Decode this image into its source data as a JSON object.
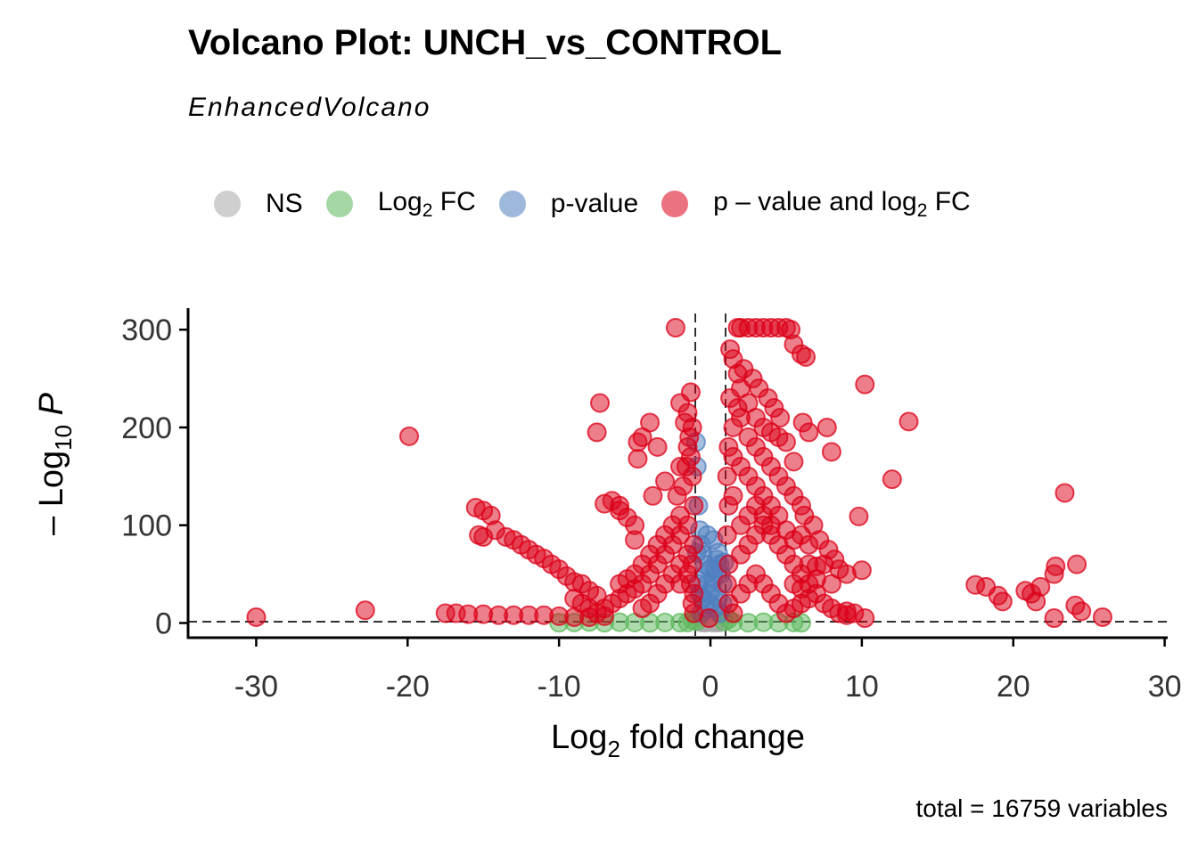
{
  "chart_data": {
    "type": "scatter",
    "title": "Volcano Plot: UNCH_vs_CONTROL",
    "subtitle": "EnhancedVolcano",
    "caption": "total = 16759 variables",
    "xlabel": "Log2 fold change",
    "ylabel": "-Log10 P",
    "xlim": [
      -34.5,
      30.2
    ],
    "ylim": [
      -15,
      322
    ],
    "xticks": [
      -30,
      -20,
      -10,
      0,
      10,
      20,
      30
    ],
    "yticks": [
      0,
      100,
      200,
      300
    ],
    "fc_cutoff": [
      -1,
      1
    ],
    "p_cutoff_line": 1.3,
    "grid": false,
    "legend_position": "top",
    "colors": {
      "NS": "#a8a8a8",
      "Log2 FC": "#5cb85c",
      "p-value": "#4f7fbf",
      "p - value and log2 FC": "#dc0018"
    },
    "legend": [
      {
        "key": "NS",
        "label": "NS",
        "color": "#a8a8a8"
      },
      {
        "key": "Log2 FC",
        "label": "Log",
        "sub": "2",
        "rest": " FC",
        "color": "#5cb85c"
      },
      {
        "key": "p-value",
        "label": "p-value",
        "color": "#4f7fbf"
      },
      {
        "key": "p - value and log2 FC",
        "label": "p – value and log",
        "sub": "2",
        "rest": " FC",
        "color": "#dc0018"
      }
    ],
    "series": [
      {
        "name": "NS",
        "points": [
          [
            -0.4,
            1
          ],
          [
            -0.2,
            2
          ],
          [
            0,
            3
          ],
          [
            0.2,
            1
          ],
          [
            0.4,
            2
          ],
          [
            -0.6,
            0.5
          ],
          [
            0.6,
            0.5
          ],
          [
            0.1,
            4
          ],
          [
            -0.1,
            5
          ],
          [
            0.3,
            0.3
          ],
          [
            -0.3,
            0.3
          ],
          [
            0,
            0.8
          ]
        ]
      },
      {
        "name": "Log2 FC",
        "points": [
          [
            -9,
            0.5
          ],
          [
            -8,
            1
          ],
          [
            -7,
            0.3
          ],
          [
            -6,
            0.8
          ],
          [
            -5,
            0.5
          ],
          [
            -4,
            0.2
          ],
          [
            -3,
            0.6
          ],
          [
            -2,
            0.4
          ],
          [
            -1.5,
            0.5
          ],
          [
            1.5,
            0.5
          ],
          [
            2.5,
            0.3
          ],
          [
            3.5,
            0.8
          ],
          [
            4.5,
            0.4
          ],
          [
            5.5,
            0.6
          ],
          [
            6,
            0.2
          ],
          [
            -10,
            0.3
          ],
          [
            -0.9,
            2
          ],
          [
            0.9,
            1.5
          ],
          [
            -1.2,
            3
          ],
          [
            1.2,
            4
          ]
        ]
      },
      {
        "name": "p-value",
        "points": [
          [
            -0.9,
            160
          ],
          [
            -0.95,
            185
          ],
          [
            -0.8,
            120
          ],
          [
            -0.7,
            95
          ],
          [
            -0.6,
            80
          ],
          [
            -0.5,
            70
          ],
          [
            -0.4,
            60
          ],
          [
            -0.3,
            50
          ],
          [
            -0.2,
            40
          ],
          [
            -0.1,
            30
          ],
          [
            0.1,
            35
          ],
          [
            0.2,
            45
          ],
          [
            0.3,
            55
          ],
          [
            0.4,
            65
          ],
          [
            0.5,
            72
          ],
          [
            0.6,
            60
          ],
          [
            0.7,
            50
          ],
          [
            0.8,
            40
          ],
          [
            0.9,
            62
          ],
          [
            -0.9,
            72
          ],
          [
            -0.8,
            40
          ],
          [
            -0.5,
            25
          ],
          [
            0.5,
            25
          ],
          [
            0,
            20
          ],
          [
            -0.3,
            15
          ],
          [
            0.3,
            15
          ],
          [
            0.6,
            10
          ],
          [
            -0.6,
            10
          ],
          [
            0,
            55
          ],
          [
            -0.2,
            90
          ],
          [
            0.2,
            85
          ],
          [
            -0.7,
            30
          ],
          [
            0.8,
            20
          ]
        ]
      },
      {
        "name": "p - value and log2 FC",
        "points": [
          [
            -30,
            6
          ],
          [
            -22.8,
            13
          ],
          [
            -19.9,
            191
          ],
          [
            -15.5,
            118
          ],
          [
            -15,
            115
          ],
          [
            -14.5,
            110
          ],
          [
            -14.2,
            95
          ],
          [
            -13.5,
            88
          ],
          [
            -13,
            85
          ],
          [
            -12.5,
            80
          ],
          [
            -12,
            75
          ],
          [
            -11.5,
            70
          ],
          [
            -11,
            66
          ],
          [
            -10.5,
            60
          ],
          [
            -10,
            55
          ],
          [
            -9.5,
            48
          ],
          [
            -9,
            42
          ],
          [
            -8.5,
            40
          ],
          [
            -8,
            33
          ],
          [
            -7.5,
            28
          ],
          [
            -15.3,
            90
          ],
          [
            -15,
            88
          ],
          [
            -17.5,
            10
          ],
          [
            -16.8,
            10
          ],
          [
            -16,
            9
          ],
          [
            -15,
            9
          ],
          [
            -14,
            8
          ],
          [
            -13,
            8
          ],
          [
            -12,
            8
          ],
          [
            -11,
            8
          ],
          [
            -10,
            7
          ],
          [
            -9,
            6
          ],
          [
            -8,
            6
          ],
          [
            -7,
            7
          ],
          [
            -7.3,
            225
          ],
          [
            -7.5,
            195
          ],
          [
            -6.5,
            125
          ],
          [
            -7,
            122
          ],
          [
            -6,
            120
          ],
          [
            -6,
            115
          ],
          [
            -5.5,
            108
          ],
          [
            -5,
            100
          ],
          [
            -5,
            85
          ],
          [
            -4.8,
            185
          ],
          [
            -4.5,
            190
          ],
          [
            -4.8,
            168
          ],
          [
            -4,
            205
          ],
          [
            -3.8,
            130
          ],
          [
            -3.5,
            180
          ],
          [
            -3,
            145
          ],
          [
            -2.3,
            302
          ],
          [
            -1.3,
            236
          ],
          [
            -2,
            225
          ],
          [
            -1.5,
            215
          ],
          [
            -1.2,
            200
          ],
          [
            -1.5,
            180
          ],
          [
            -1.2,
            150
          ],
          [
            -1.1,
            120
          ],
          [
            -1.5,
            100
          ],
          [
            -2,
            90
          ],
          [
            -2.5,
            80
          ],
          [
            -3,
            70
          ],
          [
            -3.5,
            60
          ],
          [
            -4,
            50
          ],
          [
            -4.5,
            40
          ],
          [
            -5,
            35
          ],
          [
            -5.5,
            30
          ],
          [
            -6,
            25
          ],
          [
            -6.5,
            20
          ],
          [
            -7,
            15
          ],
          [
            -7.5,
            10
          ],
          [
            -8,
            15
          ],
          [
            -8.5,
            20
          ],
          [
            -9,
            25
          ],
          [
            -1.1,
            80
          ],
          [
            -1.2,
            60
          ],
          [
            -1.3,
            40
          ],
          [
            -1.1,
            30
          ],
          [
            -1.2,
            20
          ],
          [
            -2,
            60
          ],
          [
            -2.5,
            50
          ],
          [
            -3,
            40
          ],
          [
            -3.5,
            30
          ],
          [
            -4,
            20
          ],
          [
            -4.5,
            15
          ],
          [
            -2,
            40
          ],
          [
            -1.5,
            50
          ],
          [
            -1.5,
            70
          ],
          [
            -2,
            110
          ],
          [
            -2.5,
            100
          ],
          [
            -3,
            90
          ],
          [
            -3.5,
            80
          ],
          [
            -4,
            70
          ],
          [
            -4.5,
            60
          ],
          [
            -5,
            50
          ],
          [
            -5.5,
            45
          ],
          [
            -6,
            40
          ],
          [
            -1.3,
            170
          ],
          [
            -1.6,
            160
          ],
          [
            -1.8,
            140
          ],
          [
            -2.2,
            130
          ],
          [
            -1.4,
            190
          ],
          [
            -1.7,
            205
          ],
          [
            -2,
            160
          ],
          [
            1.8,
            302
          ],
          [
            2,
            302
          ],
          [
            2.5,
            302
          ],
          [
            3,
            302
          ],
          [
            3.5,
            302
          ],
          [
            4,
            302
          ],
          [
            4.5,
            302
          ],
          [
            5,
            302
          ],
          [
            5.3,
            300
          ],
          [
            5.5,
            285
          ],
          [
            6,
            275
          ],
          [
            6.3,
            272
          ],
          [
            1.3,
            280
          ],
          [
            1.5,
            270
          ],
          [
            1.8,
            255
          ],
          [
            2,
            240
          ],
          [
            2.5,
            225
          ],
          [
            3,
            210
          ],
          [
            3.5,
            200
          ],
          [
            4,
            195
          ],
          [
            4.5,
            190
          ],
          [
            5,
            185
          ],
          [
            5.5,
            165
          ],
          [
            6.1,
            205
          ],
          [
            6.5,
            195
          ],
          [
            7.7,
            200
          ],
          [
            8,
            175
          ],
          [
            10.2,
            244
          ],
          [
            13.1,
            206
          ],
          [
            12,
            147
          ],
          [
            9.8,
            109
          ],
          [
            10,
            54
          ],
          [
            9,
            50
          ],
          [
            8.5,
            55
          ],
          [
            7.5,
            60
          ],
          [
            7,
            58
          ],
          [
            6.5,
            80
          ],
          [
            6,
            90
          ],
          [
            5.5,
            85
          ],
          [
            5,
            95
          ],
          [
            4.5,
            110
          ],
          [
            4,
            120
          ],
          [
            3.5,
            130
          ],
          [
            3,
            140
          ],
          [
            2.5,
            150
          ],
          [
            2,
            160
          ],
          [
            1.5,
            170
          ],
          [
            1.2,
            180
          ],
          [
            1.1,
            150
          ],
          [
            1.2,
            120
          ],
          [
            1.1,
            90
          ],
          [
            1.2,
            60
          ],
          [
            1.1,
            40
          ],
          [
            1.2,
            20
          ],
          [
            1.5,
            10
          ],
          [
            2,
            30
          ],
          [
            2.5,
            40
          ],
          [
            3,
            50
          ],
          [
            3.5,
            40
          ],
          [
            4,
            30
          ],
          [
            4.5,
            20
          ],
          [
            5,
            10
          ],
          [
            5.5,
            15
          ],
          [
            6,
            20
          ],
          [
            6.5,
            25
          ],
          [
            7,
            30
          ],
          [
            7.5,
            20
          ],
          [
            8,
            15
          ],
          [
            8.5,
            10
          ],
          [
            9,
            8
          ],
          [
            9.5,
            10
          ],
          [
            9,
            12
          ],
          [
            10.2,
            5
          ],
          [
            2,
            70
          ],
          [
            2.5,
            80
          ],
          [
            3,
            90
          ],
          [
            3.5,
            100
          ],
          [
            4,
            90
          ],
          [
            4.5,
            80
          ],
          [
            5,
            70
          ],
          [
            5.5,
            60
          ],
          [
            6,
            50
          ],
          [
            6.5,
            40
          ],
          [
            2,
            100
          ],
          [
            2.5,
            110
          ],
          [
            3,
            120
          ],
          [
            3.5,
            110
          ],
          [
            4,
            100
          ],
          [
            1.5,
            130
          ],
          [
            1.5,
            200
          ],
          [
            2,
            210
          ],
          [
            2.5,
            190
          ],
          [
            3,
            180
          ],
          [
            3.5,
            170
          ],
          [
            4,
            160
          ],
          [
            4.5,
            150
          ],
          [
            5,
            140
          ],
          [
            5.5,
            130
          ],
          [
            6,
            120
          ],
          [
            1.3,
            230
          ],
          [
            1.8,
            220
          ],
          [
            2.2,
            260
          ],
          [
            2.8,
            250
          ],
          [
            3.2,
            240
          ],
          [
            3.8,
            230
          ],
          [
            4.2,
            220
          ],
          [
            4.6,
            210
          ],
          [
            6.2,
            110
          ],
          [
            6.8,
            100
          ],
          [
            7.2,
            85
          ],
          [
            7.8,
            75
          ],
          [
            8.2,
            65
          ],
          [
            6.5,
            60
          ],
          [
            7,
            45
          ],
          [
            8,
            40
          ],
          [
            5.5,
            40
          ],
          [
            6,
            35
          ],
          [
            17.5,
            39
          ],
          [
            18.2,
            37
          ],
          [
            19,
            28
          ],
          [
            19.3,
            22
          ],
          [
            20.8,
            33
          ],
          [
            21.2,
            30
          ],
          [
            21.5,
            22
          ],
          [
            21.8,
            37
          ],
          [
            22.7,
            50
          ],
          [
            22.8,
            58
          ],
          [
            22.7,
            5
          ],
          [
            23.4,
            133
          ],
          [
            24.2,
            60
          ],
          [
            24.1,
            18
          ],
          [
            24.5,
            12
          ],
          [
            25.9,
            6
          ],
          [
            -0.1,
            5
          ],
          [
            -1.1,
            10
          ]
        ]
      }
    ]
  }
}
